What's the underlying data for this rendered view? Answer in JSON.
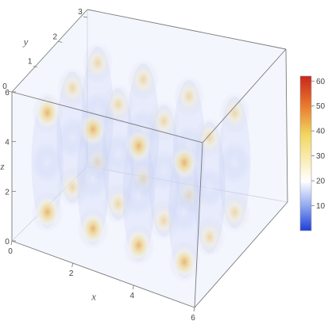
{
  "chart_data": {
    "type": "heatmap",
    "subtype": "3d-density",
    "x_axis": {
      "label": "x",
      "range": [
        0,
        6
      ],
      "ticks": [
        0,
        2,
        4,
        6
      ]
    },
    "y_axis": {
      "label": "y",
      "range": [
        0,
        3
      ],
      "ticks": [
        0,
        1,
        2,
        3
      ]
    },
    "z_axis": {
      "label": "z",
      "range": [
        0,
        6
      ],
      "ticks": [
        0,
        2,
        4,
        6
      ]
    },
    "colorbar": {
      "range": [
        0,
        62
      ],
      "ticks": [
        10,
        20,
        30,
        40,
        50,
        60
      ],
      "colors": [
        "#1f3fd8",
        "#8fa8f0",
        "#ffffff",
        "#f2d760",
        "#e8742a",
        "#c8261e"
      ]
    },
    "columns_grid": {
      "nx": 4,
      "ny": 3
    },
    "blobs_per_column": 3,
    "value_range": [
      10,
      45
    ],
    "grid": false,
    "legend": "right"
  }
}
